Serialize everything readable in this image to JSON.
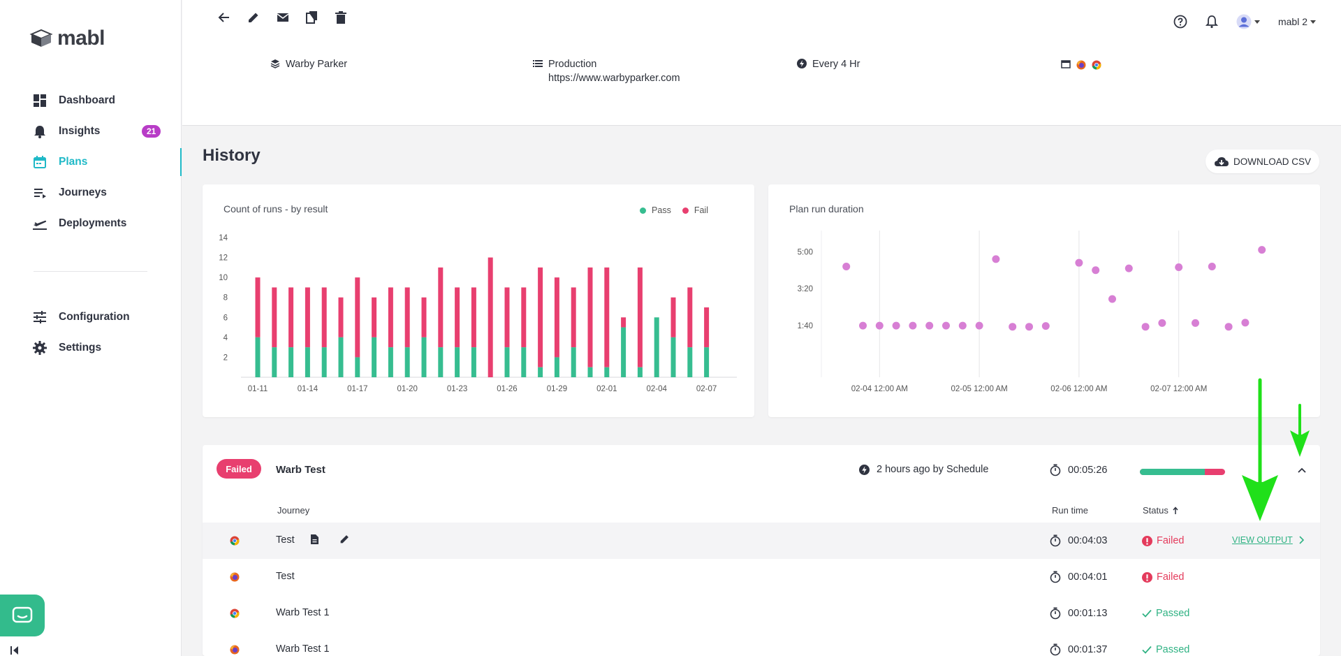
{
  "app": {
    "logo_text": "mabl"
  },
  "sidebar": {
    "items": [
      {
        "label": "Dashboard",
        "icon": "dashboard-icon"
      },
      {
        "label": "Insights",
        "icon": "bell-icon",
        "badge": "21"
      },
      {
        "label": "Plans",
        "icon": "calendar-icon",
        "active": true
      },
      {
        "label": "Journeys",
        "icon": "list-icon"
      },
      {
        "label": "Deployments",
        "icon": "plane-icon"
      },
      {
        "label": "Configuration",
        "icon": "sliders-icon"
      },
      {
        "label": "Settings",
        "icon": "gear-icon"
      }
    ]
  },
  "header": {
    "user": "mabl 2",
    "application": "Warby Parker",
    "environment": "Production",
    "url": "https://www.warbyparker.com",
    "schedule": "Every 4 Hr"
  },
  "history": {
    "title": "History",
    "download_label": "DOWNLOAD CSV"
  },
  "colors": {
    "accent": "#1fb9c7",
    "pass": "#36bd90",
    "fail": "#e83f6f",
    "duration_dot": "#d77fd4",
    "badge": "#b83cc7"
  },
  "chart_data": [
    {
      "type": "bar",
      "title": "Count of runs - by result",
      "stacked": true,
      "legend": [
        "Pass",
        "Fail"
      ],
      "legend_position": "top-right",
      "ylim": [
        0,
        14
      ],
      "yticks": [
        "2",
        "4",
        "6",
        "8",
        "10",
        "12",
        "14"
      ],
      "xticks": [
        "01-11",
        "01-14",
        "01-17",
        "01-20",
        "01-23",
        "01-26",
        "01-29",
        "02-01",
        "02-04",
        "02-07"
      ],
      "categories": [
        "01-11",
        "01-12",
        "01-13",
        "01-14",
        "01-15",
        "01-16",
        "01-17",
        "01-18",
        "01-19",
        "01-20",
        "01-21",
        "01-22",
        "01-23",
        "01-24",
        "01-25",
        "01-26",
        "01-27",
        "01-28",
        "01-29",
        "01-30",
        "01-31",
        "02-01",
        "02-02",
        "02-03",
        "02-04",
        "02-05",
        "02-06",
        "02-07"
      ],
      "series": [
        {
          "name": "Pass",
          "values": [
            4,
            3,
            3,
            3,
            3,
            4,
            2,
            4,
            3,
            3,
            4,
            3,
            3,
            3,
            0,
            3,
            3,
            1,
            2,
            3,
            1,
            1,
            5,
            1,
            6,
            4,
            3,
            3
          ]
        },
        {
          "name": "Fail",
          "values": [
            6,
            6,
            6,
            6,
            6,
            4,
            8,
            4,
            6,
            6,
            4,
            8,
            6,
            6,
            12,
            6,
            6,
            10,
            8,
            6,
            10,
            10,
            1,
            10,
            0,
            4,
            6,
            4
          ]
        }
      ]
    },
    {
      "type": "scatter",
      "title": "Plan run duration",
      "yticks": [
        "1:40",
        "3:20",
        "5:00"
      ],
      "xticks": [
        "02-04 12:00 AM",
        "02-05 12:00 AM",
        "02-06 12:00 AM",
        "02-07 12:00 AM"
      ],
      "x_axis": "date (Feb 3 – Feb 8)",
      "points": [
        {
          "x": "02-03 16:00",
          "y": 260
        },
        {
          "x": "02-03 20:00",
          "y": 100
        },
        {
          "x": "02-04 00:00",
          "y": 100
        },
        {
          "x": "02-04 04:00",
          "y": 100
        },
        {
          "x": "02-04 08:00",
          "y": 100
        },
        {
          "x": "02-04 12:00",
          "y": 100
        },
        {
          "x": "02-04 16:00",
          "y": 100
        },
        {
          "x": "02-04 20:00",
          "y": 100
        },
        {
          "x": "02-05 00:00",
          "y": 100
        },
        {
          "x": "02-05 04:00",
          "y": 280
        },
        {
          "x": "02-05 08:00",
          "y": 97
        },
        {
          "x": "02-05 12:00",
          "y": 97
        },
        {
          "x": "02-05 16:00",
          "y": 99
        },
        {
          "x": "02-06 00:00",
          "y": 270
        },
        {
          "x": "02-06 04:00",
          "y": 250
        },
        {
          "x": "02-06 08:00",
          "y": 172
        },
        {
          "x": "02-06 12:00",
          "y": 255
        },
        {
          "x": "02-06 16:00",
          "y": 97
        },
        {
          "x": "02-06 20:00",
          "y": 107
        },
        {
          "x": "02-07 00:00",
          "y": 258
        },
        {
          "x": "02-07 04:00",
          "y": 107
        },
        {
          "x": "02-07 08:00",
          "y": 260
        },
        {
          "x": "02-07 12:00",
          "y": 97
        },
        {
          "x": "02-07 16:00",
          "y": 108
        },
        {
          "x": "02-07 20:00",
          "y": 305
        }
      ]
    }
  ],
  "run": {
    "status": "Failed",
    "name": "Warb Test",
    "when": "2 hours ago by Schedule",
    "duration": "00:05:26",
    "pass_fraction": 0.76,
    "columns": {
      "journey": "Journey",
      "run_time": "Run time",
      "status": "Status"
    },
    "view_output_label": "VIEW OUTPUT",
    "rows": [
      {
        "browser": "chrome-icon",
        "name": "Test",
        "time": "00:04:03",
        "status": "Failed"
      },
      {
        "browser": "firefox-icon",
        "name": "Test",
        "time": "00:04:01",
        "status": "Failed"
      },
      {
        "browser": "chrome-icon",
        "name": "Warb Test 1",
        "time": "00:01:13",
        "status": "Passed"
      },
      {
        "browser": "firefox-icon",
        "name": "Warb Test 1",
        "time": "00:01:37",
        "status": "Passed"
      }
    ]
  }
}
